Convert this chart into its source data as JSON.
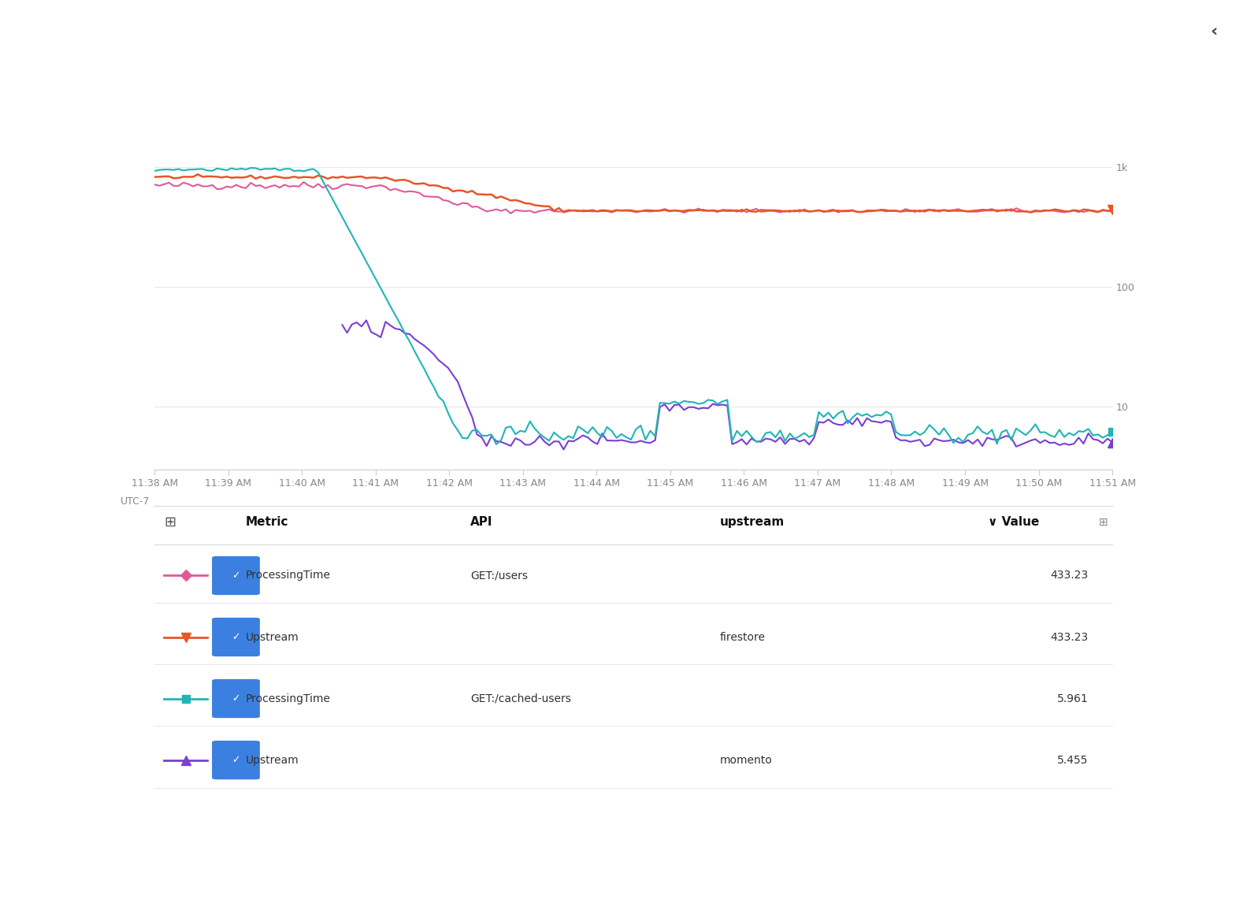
{
  "bg_color": "#ffffff",
  "grid_color": "#e8e8e8",
  "axis_color": "#cccccc",
  "tick_color": "#888888",
  "x_label": "UTC-7",
  "x_ticks": [
    "11:38 AM",
    "11:39 AM",
    "11:40 AM",
    "11:41 AM",
    "11:42 AM",
    "11:43 AM",
    "11:44 AM",
    "11:45 AM",
    "11:46 AM",
    "11:47 AM",
    "11:48 AM",
    "11:49 AM",
    "11:50 AM",
    "11:51 AM"
  ],
  "y_tick_labels": [
    "10",
    "100",
    "1k"
  ],
  "y_ticks": [
    10,
    100,
    1000
  ],
  "y_lim": [
    3,
    3000
  ],
  "colors": {
    "processing_time_users": "#e05a9a",
    "upstream_firestore": "#e8552a",
    "processing_time_cached": "#20b5b5",
    "upstream_momento": "#7b3fd4"
  },
  "legend_rows": [
    {
      "label": "ProcessingTime",
      "api": "GET:/users",
      "upstream": "",
      "value": "433.23",
      "color": "#e05a9a",
      "marker": "D"
    },
    {
      "label": "Upstream",
      "api": "",
      "upstream": "firestore",
      "value": "433.23",
      "color": "#e8552a",
      "marker": "v"
    },
    {
      "label": "ProcessingTime",
      "api": "GET:/cached-users",
      "upstream": "",
      "value": "5.961",
      "color": "#20b5b5",
      "marker": "s"
    },
    {
      "label": "Upstream",
      "api": "",
      "upstream": "momento",
      "value": "5.455",
      "color": "#7b3fd4",
      "marker": "^"
    }
  ],
  "n_points": 200
}
